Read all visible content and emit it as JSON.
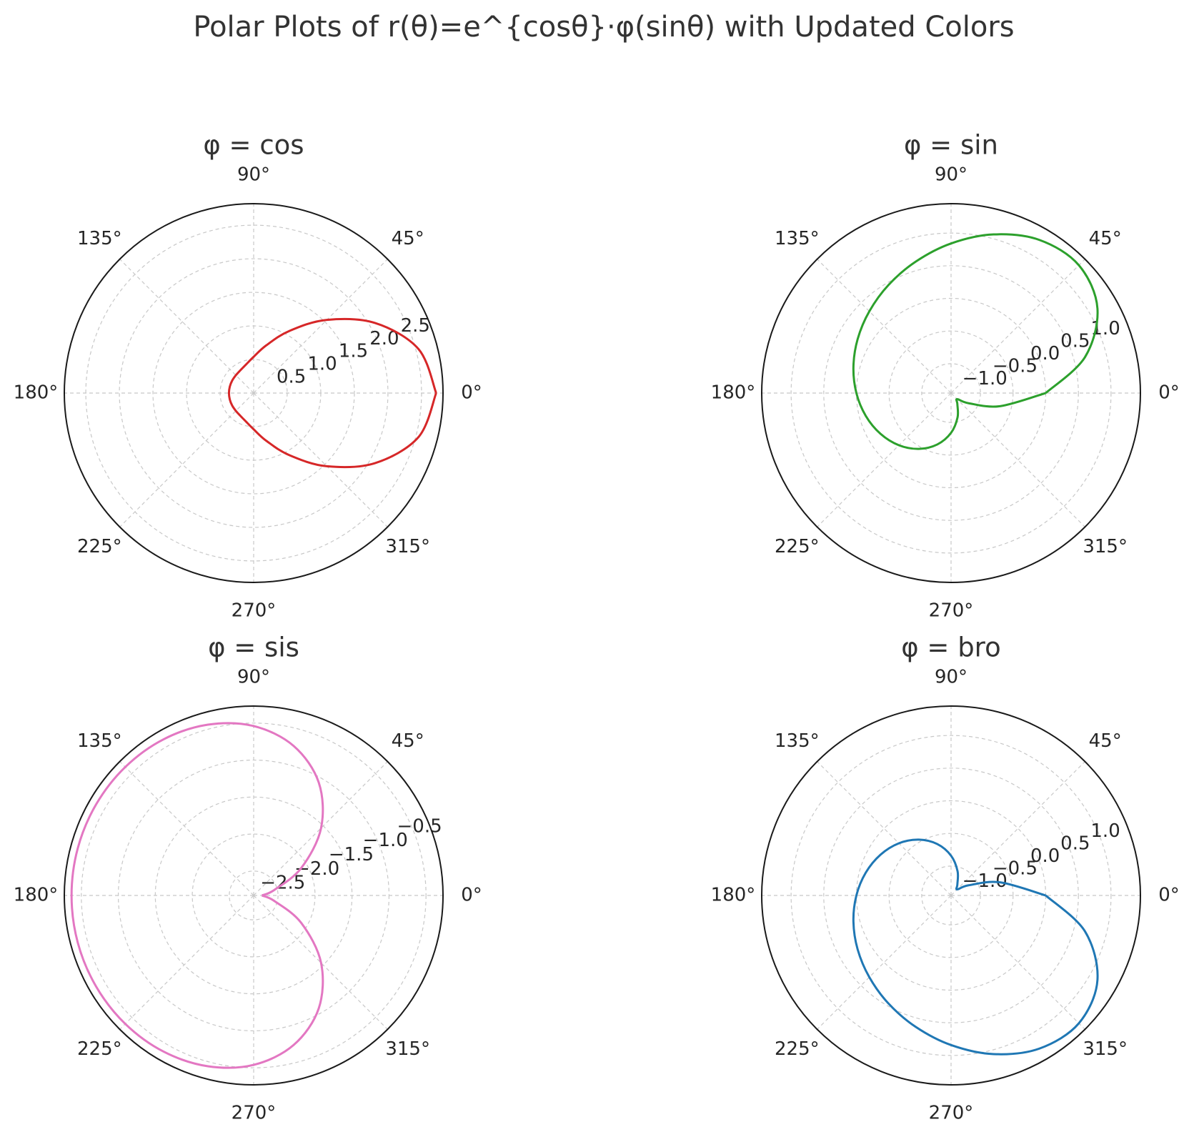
{
  "title": "Polar Plots of r(θ)=e^{cosθ}·φ(sinθ) with Updated Colors",
  "chart_data": [
    {
      "type": "polar",
      "title": "φ = cos",
      "color": "#d62728",
      "x": [
        0,
        15,
        30,
        45,
        60,
        75,
        90,
        105,
        120,
        135,
        150,
        165,
        180,
        195,
        210,
        225,
        240,
        255,
        270,
        285,
        300,
        315,
        330,
        345,
        360
      ],
      "values": [
        2.718,
        2.54,
        2.087,
        1.541,
        1.069,
        0.738,
        0.54,
        0.44,
        0.393,
        0.375,
        0.37,
        0.368,
        0.368,
        0.368,
        0.37,
        0.375,
        0.393,
        0.44,
        0.54,
        0.738,
        1.069,
        1.541,
        2.087,
        2.54,
        2.718
      ],
      "rlim": [
        0,
        2.82
      ],
      "rticks": [
        0.5,
        {
          "value": 1,
          "label": "1.0"
        },
        1.5,
        {
          "value": 2,
          "label": "2.0"
        },
        2.5
      ],
      "xticks": [
        {
          "value": 0,
          "label": "0°"
        },
        {
          "value": 45,
          "label": "45°"
        },
        {
          "value": 90,
          "label": "90°"
        },
        {
          "value": 135,
          "label": "135°"
        },
        {
          "value": 180,
          "label": "180°"
        },
        {
          "value": 225,
          "label": "225°"
        },
        {
          "value": 270,
          "label": "270°"
        },
        {
          "value": 315,
          "label": "315°"
        }
      ],
      "grid": true
    },
    {
      "type": "polar",
      "title": "φ = sin",
      "color": "#2ca02c",
      "x": [
        0,
        15,
        30,
        45,
        60,
        75,
        90,
        105,
        120,
        135,
        150,
        165,
        180,
        195,
        210,
        225,
        240,
        255,
        270,
        285,
        300,
        315,
        330,
        345,
        360
      ],
      "values": [
        0,
        0.673,
        1.139,
        1.318,
        1.257,
        1.065,
        0.841,
        0.635,
        0.463,
        0.32,
        0.202,
        0.098,
        0,
        -0.098,
        -0.202,
        -0.32,
        -0.463,
        -0.635,
        -0.841,
        -1.065,
        -1.257,
        -1.318,
        -1.139,
        -0.673,
        0
      ],
      "rlim": [
        -1.45,
        1.45
      ],
      "rticks": [
        {
          "value": -1,
          "label": "−1.0"
        },
        {
          "value": -0.5,
          "label": "−0.5"
        },
        {
          "value": 0,
          "label": "0.0"
        },
        0.5,
        {
          "value": 1,
          "label": "1.0"
        }
      ],
      "xticks": [
        {
          "value": 0,
          "label": "0°"
        },
        {
          "value": 45,
          "label": "45°"
        },
        {
          "value": 90,
          "label": "90°"
        },
        {
          "value": 135,
          "label": "135°"
        },
        {
          "value": 180,
          "label": "180°"
        },
        {
          "value": 225,
          "label": "225°"
        },
        {
          "value": 270,
          "label": "270°"
        },
        {
          "value": 315,
          "label": "315°"
        }
      ],
      "grid": true
    },
    {
      "type": "polar",
      "title": "φ = sis",
      "color": "#e377c2",
      "x": [
        0,
        15,
        30,
        45,
        60,
        75,
        90,
        105,
        120,
        135,
        150,
        165,
        180,
        195,
        210,
        225,
        240,
        255,
        270,
        285,
        300,
        315,
        330,
        345,
        360
      ],
      "values": [
        -2.718,
        -2.54,
        -2.087,
        -1.541,
        -1.069,
        -0.738,
        -0.54,
        -0.44,
        -0.393,
        -0.375,
        -0.37,
        -0.368,
        -0.368,
        -0.368,
        -0.37,
        -0.375,
        -0.393,
        -0.44,
        -0.54,
        -0.738,
        -1.069,
        -1.541,
        -2.087,
        -2.54,
        -2.718
      ],
      "rlim": [
        -2.83,
        -0.27
      ],
      "rticks": [
        {
          "value": -2.5,
          "label": "−2.5"
        },
        {
          "value": -2,
          "label": "−2.0"
        },
        {
          "value": -1.5,
          "label": "−1.5"
        },
        {
          "value": -1,
          "label": "−1.0"
        },
        {
          "value": -0.5,
          "label": "−0.5"
        }
      ],
      "xticks": [
        {
          "value": 0,
          "label": "0°"
        },
        {
          "value": 45,
          "label": "45°"
        },
        {
          "value": 90,
          "label": "90°"
        },
        {
          "value": 135,
          "label": "135°"
        },
        {
          "value": 180,
          "label": "180°"
        },
        {
          "value": 225,
          "label": "225°"
        },
        {
          "value": 270,
          "label": "270°"
        },
        {
          "value": 315,
          "label": "315°"
        }
      ],
      "grid": true
    },
    {
      "type": "polar",
      "title": "φ = bro",
      "color": "#1f77b4",
      "x": [
        0,
        15,
        30,
        45,
        60,
        75,
        90,
        105,
        120,
        135,
        150,
        165,
        180,
        195,
        210,
        225,
        240,
        255,
        270,
        285,
        300,
        315,
        330,
        345,
        360
      ],
      "values": [
        0,
        -0.673,
        -1.139,
        -1.318,
        -1.257,
        -1.065,
        -0.841,
        -0.635,
        -0.463,
        -0.32,
        -0.202,
        -0.098,
        0,
        0.098,
        0.202,
        0.32,
        0.463,
        0.635,
        0.841,
        1.065,
        1.257,
        1.318,
        1.139,
        0.673,
        0
      ],
      "rlim": [
        -1.45,
        1.45
      ],
      "rticks": [
        {
          "value": -1,
          "label": "−1.0"
        },
        {
          "value": -0.5,
          "label": "−0.5"
        },
        {
          "value": 0,
          "label": "0.0"
        },
        0.5,
        {
          "value": 1,
          "label": "1.0"
        }
      ],
      "xticks": [
        {
          "value": 0,
          "label": "0°"
        },
        {
          "value": 45,
          "label": "45°"
        },
        {
          "value": 90,
          "label": "90°"
        },
        {
          "value": 135,
          "label": "135°"
        },
        {
          "value": 180,
          "label": "180°"
        },
        {
          "value": 225,
          "label": "225°"
        },
        {
          "value": 270,
          "label": "270°"
        },
        {
          "value": 315,
          "label": "315°"
        }
      ],
      "grid": true
    }
  ]
}
